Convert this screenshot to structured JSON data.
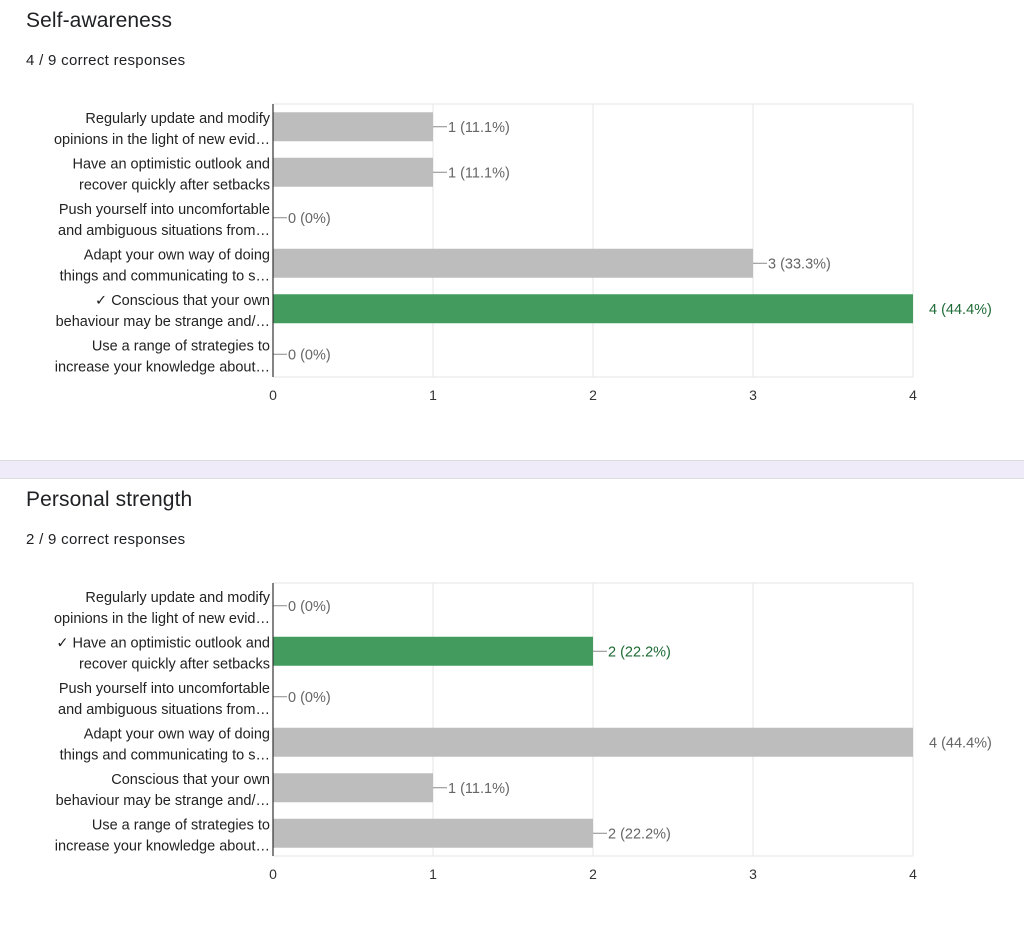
{
  "questions": [
    {
      "title": "Self-awareness",
      "score": "4 / 9 correct responses"
    },
    {
      "title": "Personal strength",
      "score": "2 / 9 correct responses"
    }
  ],
  "colors": {
    "bar_default": "#bdbdbd",
    "bar_correct": "#439c5d",
    "label_correct": "#1e6b36",
    "label_default": "#666666",
    "grid": "#e6e6e6",
    "axis": "#333333"
  },
  "chart_data": [
    {
      "type": "bar",
      "orientation": "horizontal",
      "title": "Self-awareness",
      "categories": [
        [
          "Regularly update and modify",
          "opinions in the light of new evid…"
        ],
        [
          "Have an optimistic outlook and",
          "recover quickly after setbacks"
        ],
        [
          "Push yourself into uncomfortable",
          "and ambiguous situations from…"
        ],
        [
          "Adapt your own way of doing",
          "things and communicating to s…"
        ],
        [
          "✓ Conscious that your own",
          "behaviour may be strange and/…"
        ],
        [
          "Use a range of strategies to",
          "increase your knowledge about…"
        ]
      ],
      "values": [
        1,
        1,
        0,
        3,
        4,
        0
      ],
      "value_labels": [
        "1 (11.1%)",
        "1 (11.1%)",
        "0 (0%)",
        "3 (33.3%)",
        "4 (44.4%)",
        "0 (0%)"
      ],
      "correct_index": 4,
      "xlim": [
        0,
        4
      ],
      "xticks": [
        "0",
        "1",
        "2",
        "3",
        "4"
      ],
      "grid": true
    },
    {
      "type": "bar",
      "orientation": "horizontal",
      "title": "Personal strength",
      "categories": [
        [
          "Regularly update and modify",
          "opinions in the light of new evid…"
        ],
        [
          "✓ Have an optimistic outlook and",
          "recover quickly after setbacks"
        ],
        [
          "Push yourself into uncomfortable",
          "and ambiguous situations from…"
        ],
        [
          "Adapt your own way of doing",
          "things and communicating to s…"
        ],
        [
          "Conscious that your own",
          "behaviour may be strange and/…"
        ],
        [
          "Use a range of strategies to",
          "increase your knowledge about…"
        ]
      ],
      "values": [
        0,
        2,
        0,
        4,
        1,
        2
      ],
      "value_labels": [
        "0 (0%)",
        "2 (22.2%)",
        "0 (0%)",
        "4 (44.4%)",
        "1 (11.1%)",
        "2 (22.2%)"
      ],
      "correct_index": 1,
      "xlim": [
        0,
        4
      ],
      "xticks": [
        "0",
        "1",
        "2",
        "3",
        "4"
      ],
      "grid": true
    }
  ]
}
